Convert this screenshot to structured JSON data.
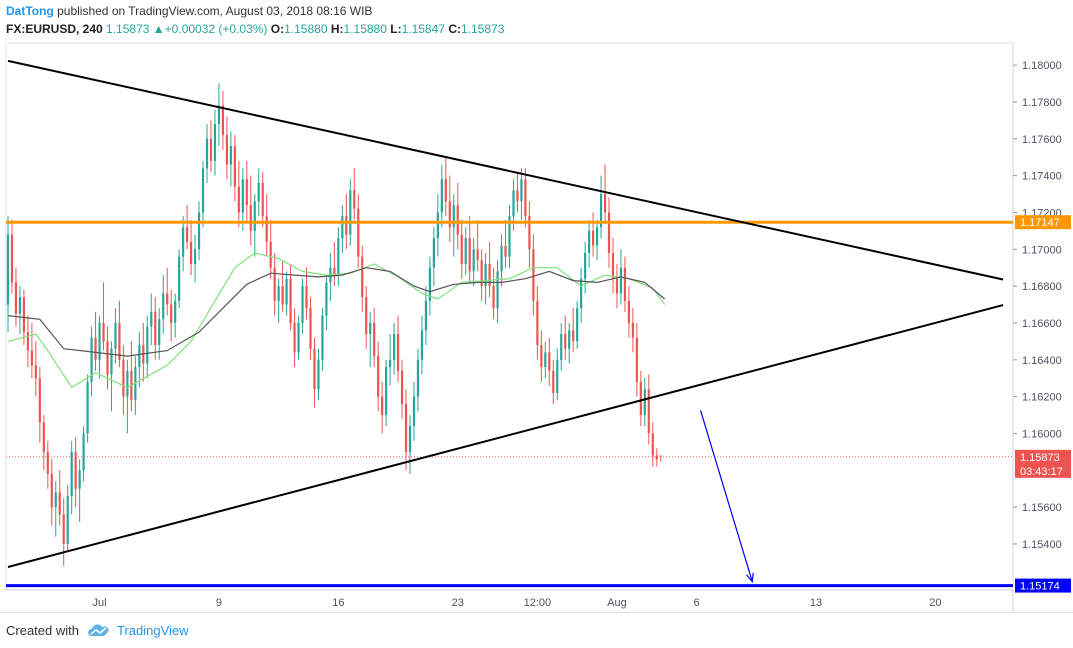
{
  "header": {
    "author": "DatTong",
    "published": "published on TradingView.com, August 03, 2018 08:16 WIB",
    "symbol": "FX:EURUSD, 240",
    "last": "1.15873",
    "change": "+0.00032 (+0.03%)",
    "o_label": "O:",
    "o_value": "1.15880",
    "h_label": "H:",
    "h_value": "1.15880",
    "l_label": "L:",
    "l_value": "1.15847",
    "c_label": "C:",
    "c_value": "1.15873"
  },
  "footer": {
    "created_with": "Created with",
    "brand": "TradingView"
  },
  "colors": {
    "up": "#26a69a",
    "down": "#ef5350",
    "orange": "#ff9800",
    "blue": "#0000ff",
    "ma_fast": "#7ee27e",
    "ma_slow": "#555555",
    "trend": "#000000"
  },
  "chart_data": {
    "type": "candlestick",
    "ylim": [
      1.1515,
      1.1812
    ],
    "y_ticks": [
      "1.18000",
      "1.17800",
      "1.17600",
      "1.17400",
      "1.17200",
      "1.17000",
      "1.16800",
      "1.16600",
      "1.16400",
      "1.16200",
      "1.16000",
      "1.15600",
      "1.15400"
    ],
    "x_ticks": [
      {
        "label": "Jul",
        "index": 23
      },
      {
        "label": "9",
        "index": 53
      },
      {
        "label": "16",
        "index": 83
      },
      {
        "label": "23",
        "index": 113
      },
      {
        "label": "12:00",
        "index": 133
      },
      {
        "label": "Aug",
        "index": 153
      },
      {
        "label": "6",
        "index": 173
      },
      {
        "label": "13",
        "index": 203
      },
      {
        "label": "20",
        "index": 233
      }
    ],
    "bar_count": 253,
    "levels": [
      {
        "name": "resistance",
        "value": 1.17147,
        "label": "1.17147",
        "color": "#ff9800"
      },
      {
        "name": "target",
        "value": 1.15174,
        "label": "1.15174",
        "color": "#0000ff"
      }
    ],
    "current_price": {
      "value": 1.15873,
      "label": "1.15873",
      "countdown": "03:43:17"
    },
    "trendlines": [
      {
        "name": "upper",
        "from": {
          "index": 0,
          "price": 1.18023
        },
        "to": {
          "index": 250,
          "price": 1.16836
        }
      },
      {
        "name": "lower",
        "from": {
          "index": 0,
          "price": 1.15275
        },
        "to": {
          "index": 250,
          "price": 1.16697
        }
      }
    ],
    "arrow": {
      "from": {
        "index": 174,
        "price": 1.16125
      },
      "to": {
        "index": 187,
        "price": 1.15195
      }
    },
    "ma_fast": [
      [
        0,
        1.165
      ],
      [
        7,
        1.1654
      ],
      [
        10,
        1.1645
      ],
      [
        16,
        1.1625
      ],
      [
        22,
        1.1633
      ],
      [
        30,
        1.1625
      ],
      [
        40,
        1.1637
      ],
      [
        46,
        1.165
      ],
      [
        52,
        1.1672
      ],
      [
        57,
        1.169
      ],
      [
        62,
        1.1698
      ],
      [
        68,
        1.1695
      ],
      [
        74,
        1.1688
      ],
      [
        80,
        1.1686
      ],
      [
        86,
        1.1687
      ],
      [
        92,
        1.1692
      ],
      [
        98,
        1.1685
      ],
      [
        104,
        1.1676
      ],
      [
        108,
        1.1673
      ],
      [
        114,
        1.1682
      ],
      [
        120,
        1.1683
      ],
      [
        126,
        1.1684
      ],
      [
        132,
        1.169
      ],
      [
        138,
        1.169
      ],
      [
        144,
        1.168
      ],
      [
        150,
        1.1686
      ],
      [
        156,
        1.1684
      ],
      [
        162,
        1.1679
      ],
      [
        165,
        1.167
      ]
    ],
    "ma_slow": [
      [
        0,
        1.1664
      ],
      [
        8,
        1.1662
      ],
      [
        14,
        1.1646
      ],
      [
        22,
        1.1644
      ],
      [
        30,
        1.1642
      ],
      [
        40,
        1.1645
      ],
      [
        48,
        1.1655
      ],
      [
        54,
        1.1668
      ],
      [
        60,
        1.1681
      ],
      [
        66,
        1.1687
      ],
      [
        72,
        1.1686
      ],
      [
        78,
        1.1685
      ],
      [
        84,
        1.1686
      ],
      [
        90,
        1.169
      ],
      [
        96,
        1.1688
      ],
      [
        102,
        1.168
      ],
      [
        106,
        1.1677
      ],
      [
        112,
        1.1681
      ],
      [
        118,
        1.1682
      ],
      [
        124,
        1.1682
      ],
      [
        130,
        1.1684
      ],
      [
        136,
        1.1688
      ],
      [
        142,
        1.1683
      ],
      [
        148,
        1.1682
      ],
      [
        154,
        1.1685
      ],
      [
        160,
        1.1682
      ],
      [
        165,
        1.1673
      ]
    ],
    "candles": [
      [
        1.167,
        1.1718,
        1.1655,
        1.1708
      ],
      [
        1.1708,
        1.1716,
        1.1676,
        1.1682
      ],
      [
        1.1682,
        1.169,
        1.1658,
        1.1665
      ],
      [
        1.1665,
        1.168,
        1.1654,
        1.1674
      ],
      [
        1.1674,
        1.1678,
        1.1648,
        1.1655
      ],
      [
        1.1655,
        1.1664,
        1.1636,
        1.1645
      ],
      [
        1.1645,
        1.166,
        1.163,
        1.1637
      ],
      [
        1.1637,
        1.165,
        1.162,
        1.163
      ],
      [
        1.163,
        1.1636,
        1.1595,
        1.1606
      ],
      [
        1.1606,
        1.161,
        1.158,
        1.159
      ],
      [
        1.159,
        1.1596,
        1.157,
        1.1578
      ],
      [
        1.1578,
        1.1586,
        1.155,
        1.156
      ],
      [
        1.156,
        1.1574,
        1.1544,
        1.1568
      ],
      [
        1.1568,
        1.158,
        1.155,
        1.1556
      ],
      [
        1.1556,
        1.1565,
        1.1528,
        1.154
      ],
      [
        1.154,
        1.1572,
        1.1536,
        1.1566
      ],
      [
        1.1566,
        1.1596,
        1.1556,
        1.159
      ],
      [
        1.159,
        1.1598,
        1.156,
        1.157
      ],
      [
        1.157,
        1.1586,
        1.1552,
        1.158
      ],
      [
        1.158,
        1.1604,
        1.1574,
        1.16
      ],
      [
        1.16,
        1.1632,
        1.1595,
        1.1628
      ],
      [
        1.1628,
        1.1658,
        1.162,
        1.1652
      ],
      [
        1.1652,
        1.1666,
        1.1634,
        1.164
      ],
      [
        1.164,
        1.1664,
        1.163,
        1.166
      ],
      [
        1.166,
        1.1682,
        1.1645,
        1.165
      ],
      [
        1.165,
        1.1658,
        1.1624,
        1.1632
      ],
      [
        1.1632,
        1.165,
        1.1612,
        1.1646
      ],
      [
        1.1646,
        1.1668,
        1.1638,
        1.166
      ],
      [
        1.166,
        1.1672,
        1.1636,
        1.164
      ],
      [
        1.164,
        1.1648,
        1.161,
        1.162
      ],
      [
        1.162,
        1.164,
        1.16,
        1.1634
      ],
      [
        1.1634,
        1.165,
        1.1612,
        1.1618
      ],
      [
        1.1618,
        1.1642,
        1.161,
        1.1636
      ],
      [
        1.1636,
        1.1655,
        1.1625,
        1.1648
      ],
      [
        1.1648,
        1.166,
        1.1628,
        1.1638
      ],
      [
        1.1638,
        1.1664,
        1.163,
        1.1658
      ],
      [
        1.1658,
        1.1676,
        1.1648,
        1.1666
      ],
      [
        1.1666,
        1.1674,
        1.164,
        1.1648
      ],
      [
        1.1648,
        1.1668,
        1.164,
        1.1662
      ],
      [
        1.1662,
        1.1686,
        1.1654,
        1.1676
      ],
      [
        1.1676,
        1.169,
        1.1664,
        1.167
      ],
      [
        1.167,
        1.1678,
        1.165,
        1.166
      ],
      [
        1.166,
        1.1676,
        1.1652,
        1.1672
      ],
      [
        1.1672,
        1.17,
        1.1668,
        1.1696
      ],
      [
        1.1696,
        1.1718,
        1.1688,
        1.1712
      ],
      [
        1.1712,
        1.1724,
        1.17,
        1.1704
      ],
      [
        1.1704,
        1.1716,
        1.1686,
        1.1692
      ],
      [
        1.1692,
        1.1708,
        1.1682,
        1.17
      ],
      [
        1.17,
        1.1726,
        1.1694,
        1.172
      ],
      [
        1.172,
        1.1748,
        1.1712,
        1.1744
      ],
      [
        1.1744,
        1.1768,
        1.1736,
        1.176
      ],
      [
        1.176,
        1.177,
        1.1742,
        1.1748
      ],
      [
        1.1748,
        1.1776,
        1.174,
        1.1768
      ],
      [
        1.1768,
        1.179,
        1.1756,
        1.1778
      ],
      [
        1.1778,
        1.1786,
        1.1754,
        1.1762
      ],
      [
        1.1762,
        1.1772,
        1.1738,
        1.1746
      ],
      [
        1.1746,
        1.1764,
        1.1734,
        1.1756
      ],
      [
        1.1756,
        1.1762,
        1.1726,
        1.1734
      ],
      [
        1.1734,
        1.1748,
        1.1712,
        1.172
      ],
      [
        1.172,
        1.1744,
        1.171,
        1.1738
      ],
      [
        1.1738,
        1.1748,
        1.1714,
        1.1724
      ],
      [
        1.1724,
        1.174,
        1.1702,
        1.171
      ],
      [
        1.171,
        1.173,
        1.1696,
        1.1726
      ],
      [
        1.1726,
        1.1744,
        1.1718,
        1.1736
      ],
      [
        1.1736,
        1.1742,
        1.1712,
        1.1718
      ],
      [
        1.1718,
        1.173,
        1.1696,
        1.1704
      ],
      [
        1.1704,
        1.1716,
        1.1684,
        1.169
      ],
      [
        1.169,
        1.1698,
        1.1664,
        1.1672
      ],
      [
        1.1672,
        1.1684,
        1.166,
        1.168
      ],
      [
        1.168,
        1.1694,
        1.1666,
        1.167
      ],
      [
        1.167,
        1.1688,
        1.1664,
        1.1684
      ],
      [
        1.1684,
        1.1692,
        1.1656,
        1.166
      ],
      [
        1.166,
        1.1668,
        1.1636,
        1.1644
      ],
      [
        1.1644,
        1.1664,
        1.164,
        1.166
      ],
      [
        1.166,
        1.1684,
        1.1654,
        1.168
      ],
      [
        1.168,
        1.169,
        1.1662,
        1.1668
      ],
      [
        1.1668,
        1.1674,
        1.164,
        1.1646
      ],
      [
        1.1646,
        1.1652,
        1.1614,
        1.1624
      ],
      [
        1.1624,
        1.1646,
        1.1618,
        1.164
      ],
      [
        1.164,
        1.1668,
        1.1634,
        1.1664
      ],
      [
        1.1664,
        1.1686,
        1.1656,
        1.1682
      ],
      [
        1.1682,
        1.1698,
        1.1672,
        1.169
      ],
      [
        1.169,
        1.1704,
        1.168,
        1.1686
      ],
      [
        1.1686,
        1.1712,
        1.168,
        1.1706
      ],
      [
        1.1706,
        1.1724,
        1.1698,
        1.1718
      ],
      [
        1.1718,
        1.173,
        1.17,
        1.1708
      ],
      [
        1.1708,
        1.1738,
        1.1702,
        1.1732
      ],
      [
        1.1732,
        1.1744,
        1.1716,
        1.1722
      ],
      [
        1.1722,
        1.173,
        1.169,
        1.1696
      ],
      [
        1.1696,
        1.1702,
        1.1666,
        1.1674
      ],
      [
        1.1674,
        1.168,
        1.1646,
        1.1654
      ],
      [
        1.1654,
        1.1666,
        1.1636,
        1.166
      ],
      [
        1.166,
        1.1668,
        1.1636,
        1.1642
      ],
      [
        1.1642,
        1.165,
        1.1612,
        1.162
      ],
      [
        1.162,
        1.1628,
        1.16,
        1.161
      ],
      [
        1.161,
        1.164,
        1.1604,
        1.1636
      ],
      [
        1.1636,
        1.1654,
        1.1626,
        1.164
      ],
      [
        1.164,
        1.166,
        1.1632,
        1.1654
      ],
      [
        1.1654,
        1.1664,
        1.1628,
        1.1634
      ],
      [
        1.1634,
        1.164,
        1.1608,
        1.1616
      ],
      [
        1.1616,
        1.1624,
        1.158,
        1.159
      ],
      [
        1.159,
        1.161,
        1.1578,
        1.1604
      ],
      [
        1.1604,
        1.1628,
        1.1596,
        1.162
      ],
      [
        1.162,
        1.1646,
        1.1612,
        1.164
      ],
      [
        1.164,
        1.1664,
        1.1632,
        1.1656
      ],
      [
        1.1656,
        1.168,
        1.1648,
        1.1672
      ],
      [
        1.1672,
        1.1696,
        1.1664,
        1.169
      ],
      [
        1.169,
        1.1712,
        1.168,
        1.1706
      ],
      [
        1.1706,
        1.173,
        1.1696,
        1.172
      ],
      [
        1.172,
        1.1746,
        1.1712,
        1.1738
      ],
      [
        1.1738,
        1.175,
        1.1718,
        1.1726
      ],
      [
        1.1726,
        1.174,
        1.1704,
        1.1712
      ],
      [
        1.1712,
        1.173,
        1.1696,
        1.1724
      ],
      [
        1.1724,
        1.1736,
        1.17,
        1.1708
      ],
      [
        1.1708,
        1.1716,
        1.1684,
        1.1692
      ],
      [
        1.1692,
        1.1712,
        1.1686,
        1.1706
      ],
      [
        1.1706,
        1.1718,
        1.1682,
        1.1688
      ],
      [
        1.1688,
        1.1706,
        1.168,
        1.17
      ],
      [
        1.17,
        1.1716,
        1.1688,
        1.1694
      ],
      [
        1.1694,
        1.17,
        1.1672,
        1.168
      ],
      [
        1.168,
        1.1698,
        1.167,
        1.1692
      ],
      [
        1.1692,
        1.1704,
        1.1674,
        1.168
      ],
      [
        1.168,
        1.169,
        1.1662,
        1.1668
      ],
      [
        1.1668,
        1.1694,
        1.166,
        1.1688
      ],
      [
        1.1688,
        1.1708,
        1.168,
        1.1702
      ],
      [
        1.1702,
        1.1716,
        1.169,
        1.1696
      ],
      [
        1.1696,
        1.1724,
        1.169,
        1.1718
      ],
      [
        1.1718,
        1.1738,
        1.171,
        1.1732
      ],
      [
        1.1732,
        1.1742,
        1.172,
        1.1726
      ],
      [
        1.1726,
        1.1744,
        1.1716,
        1.1738
      ],
      [
        1.1738,
        1.1744,
        1.1712,
        1.1718
      ],
      [
        1.1718,
        1.1726,
        1.169,
        1.17
      ],
      [
        1.17,
        1.1708,
        1.1664,
        1.1672
      ],
      [
        1.1672,
        1.168,
        1.164,
        1.1648
      ],
      [
        1.1648,
        1.1656,
        1.1628,
        1.1636
      ],
      [
        1.1636,
        1.165,
        1.163,
        1.1644
      ],
      [
        1.1644,
        1.1652,
        1.1626,
        1.1634
      ],
      [
        1.1634,
        1.164,
        1.1616,
        1.1622
      ],
      [
        1.1622,
        1.1646,
        1.1618,
        1.164
      ],
      [
        1.164,
        1.166,
        1.1634,
        1.1654
      ],
      [
        1.1654,
        1.1664,
        1.164,
        1.1646
      ],
      [
        1.1646,
        1.166,
        1.1638,
        1.1656
      ],
      [
        1.1656,
        1.1668,
        1.1644,
        1.165
      ],
      [
        1.165,
        1.1672,
        1.1646,
        1.1668
      ],
      [
        1.1668,
        1.169,
        1.166,
        1.1684
      ],
      [
        1.1684,
        1.1704,
        1.1676,
        1.1698
      ],
      [
        1.1698,
        1.1716,
        1.169,
        1.171
      ],
      [
        1.171,
        1.172,
        1.1696,
        1.1702
      ],
      [
        1.1702,
        1.1716,
        1.1694,
        1.1712
      ],
      [
        1.1712,
        1.174,
        1.1706,
        1.173
      ],
      [
        1.173,
        1.1746,
        1.1714,
        1.172
      ],
      [
        1.172,
        1.1728,
        1.169,
        1.1698
      ],
      [
        1.1698,
        1.1706,
        1.1676,
        1.1684
      ],
      [
        1.1684,
        1.1692,
        1.1668,
        1.1676
      ],
      [
        1.1676,
        1.17,
        1.167,
        1.169
      ],
      [
        1.169,
        1.1696,
        1.1666,
        1.1672
      ],
      [
        1.1672,
        1.168,
        1.1652,
        1.166
      ],
      [
        1.166,
        1.1668,
        1.1644,
        1.1652
      ],
      [
        1.1652,
        1.166,
        1.162,
        1.1628
      ],
      [
        1.1628,
        1.1634,
        1.1604,
        1.161
      ],
      [
        1.161,
        1.163,
        1.1604,
        1.1624
      ],
      [
        1.1624,
        1.1632,
        1.1594,
        1.16
      ],
      [
        1.16,
        1.1606,
        1.1582,
        1.1588
      ],
      [
        1.1588,
        1.1592,
        1.1582,
        1.1586
      ],
      [
        1.1588,
        1.1588,
        1.15847,
        1.15873
      ]
    ]
  },
  "axis": {
    "price_label_current": "1.15873",
    "countdown": "03:43:17",
    "label_resistance": "1.17147",
    "label_target": "1.15174"
  }
}
